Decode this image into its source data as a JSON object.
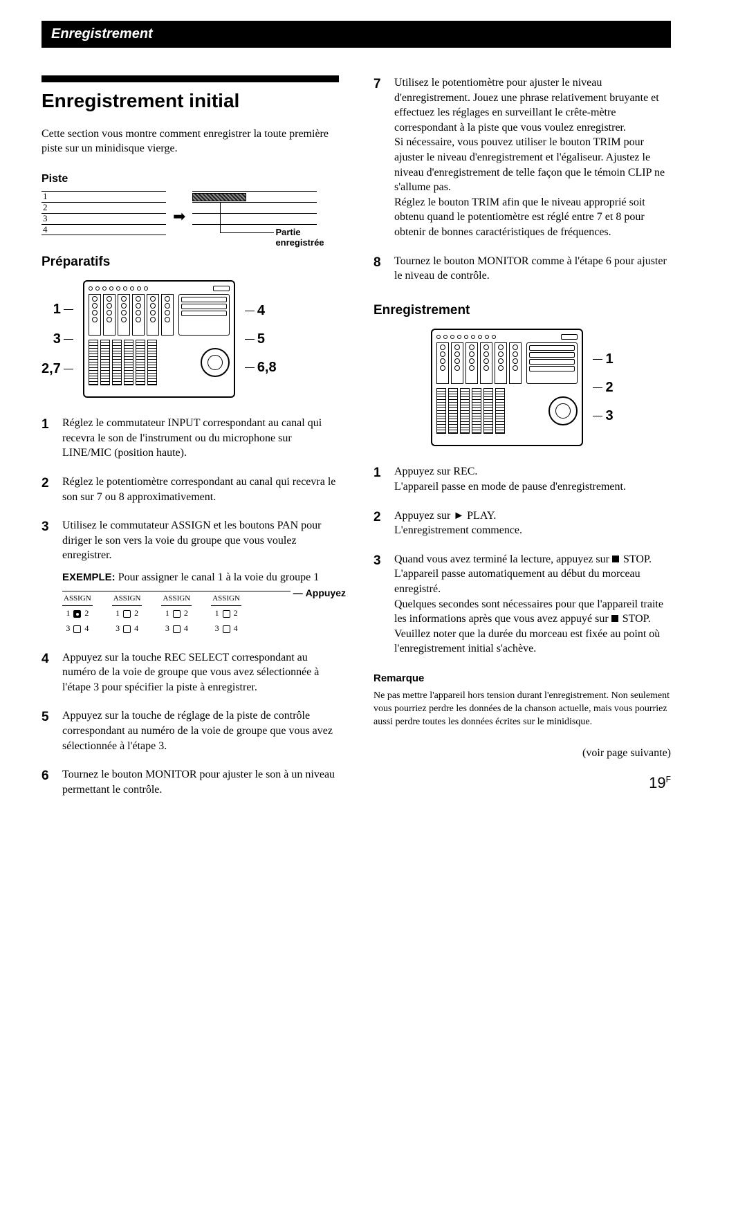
{
  "header": {
    "tab": "Enregistrement"
  },
  "left": {
    "title": "Enregistrement initial",
    "intro": "Cette section vous montre comment enregistrer la toute première piste sur un minidisque vierge.",
    "piste_label": "Piste",
    "piste_rows": [
      "1",
      "2",
      "3",
      "4"
    ],
    "partie_l1": "Partie",
    "partie_l2": "enregistrée",
    "prep_head": "Préparatifs",
    "diag_left": [
      "1",
      "3",
      "2,7"
    ],
    "diag_right": [
      "4",
      "5",
      "6,8"
    ],
    "steps": [
      "Réglez le commutateur INPUT correspondant au canal qui recevra le son de l'instrument ou du microphone sur LINE/MIC (position haute).",
      "Réglez le potentiomètre correspondant au canal qui recevra le son sur 7 ou 8 approximativement.",
      "Utilisez le commutateur ASSIGN et les boutons PAN pour diriger le son vers la voie du groupe que vous voulez enregistrer.",
      "Appuyez sur la touche REC SELECT correspondant au numéro de la voie de groupe que vous avez sélectionnée à l'étape 3 pour spécifier la piste à enregistrer.",
      "Appuyez sur la touche de réglage de la piste de contrôle correspondant au numéro de la voie de groupe que vous avez sélectionnée à l'étape 3.",
      "Tournez le bouton MONITOR pour ajuster le son à un niveau permettant le contrôle."
    ],
    "example_label": "EXEMPLE:",
    "example_text": " Pour assigner le canal 1 à la voie du groupe 1",
    "assign_head": "ASSIGN",
    "appuyez": "Appuyez"
  },
  "right": {
    "steps_cont": {
      "7": "Utilisez le potentiomètre pour ajuster le niveau d'enregistrement. Jouez une phrase relativement bruyante et effectuez les réglages en surveillant le crête-mètre correspondant à la piste que vous voulez enregistrer.\nSi nécessaire, vous pouvez utiliser le bouton TRIM pour ajuster le niveau d'enregistrement et l'égaliseur. Ajustez le niveau d'enregistrement de telle façon que le témoin CLIP ne s'allume pas.\nRéglez le bouton TRIM afin que le niveau approprié soit obtenu quand le potentiomètre est réglé entre 7 et 8 pour obtenir de bonnes caractéristiques de fréquences.",
      "8": "Tournez le bouton MONITOR comme à l'étape 6 pour ajuster le niveau de contrôle."
    },
    "rec_head": "Enregistrement",
    "diag_right": [
      "1",
      "2",
      "3"
    ],
    "rec_steps": [
      "Appuyez sur REC.\nL'appareil passe en mode de pause d'enregistrement.",
      "Appuyez sur ► PLAY.\nL'enregistrement commence.",
      "Quand vous avez terminé la lecture, appuyez sur ■ STOP.\nL'appareil passe automatiquement au début du morceau enregistré.\nQuelques secondes sont nécessaires pour que l'appareil traite les informations après que vous avez appuyé sur ■ STOP.\nVeuillez noter que la durée du morceau est fixée au point où l'enregistrement initial s'achève."
    ],
    "remark_head": "Remarque",
    "remark_body": "Ne pas mettre l'appareil hors tension durant l'enregistrement. Non seulement vous pourriez perdre les données de la chanson actuelle, mais vous pourriez aussi perdre toutes les données écrites sur le minidisque.",
    "cont": "(voir page suivante)"
  },
  "page": {
    "num": "19",
    "sup": "F"
  }
}
